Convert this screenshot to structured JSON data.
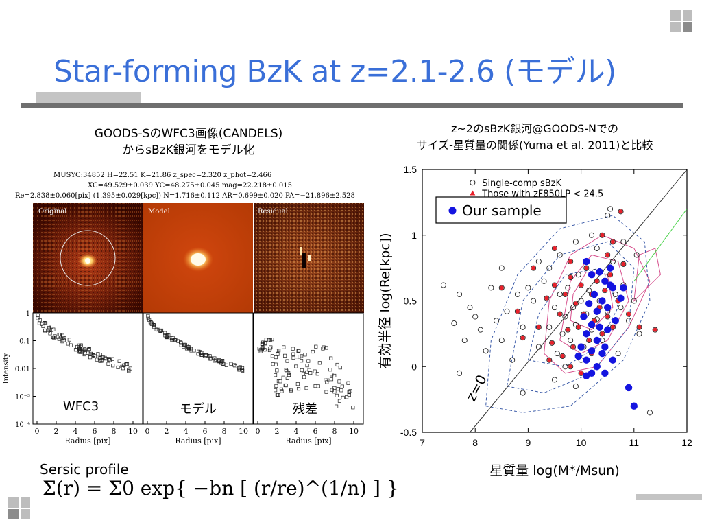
{
  "slide": {
    "title": "Star-forming BzK at z=2.1-2.6 (モデル)",
    "left_caption_line1": "GOODS-SのWFC3画像(CANDELS)",
    "left_caption_line2": "からsBzK銀河をモデル化",
    "right_caption_line1": "z~2のsBzK銀河@GOODS-Nでの",
    "right_caption_line2": "サイズ-星質量の関係(Yuma et al. 2011)と比較",
    "sersic_label": "Sersic profile",
    "formula_text": "Σ(r) = Σ0 exp{ −bn [ (r/re)^(1/n) ] }"
  },
  "fit_info": {
    "line1": "MUSYC:34852  H=22.51  K=21.86  z_spec=2.320  z_phot=2.466",
    "line2": "XC=49.529±0.039  YC=48.275±0.045  mag=22.218±0.015",
    "line3": "Re=2.838±0.060[pix]  (1.395±0.029[kpc])  N=1.716±0.112  AR=0.699±0.020  PA=−21.896±2.528"
  },
  "image_panels": {
    "labels": [
      "Original",
      "Model",
      "Residual"
    ]
  },
  "profile_panels": {
    "labels": [
      "WFC3",
      "モデル",
      "残差"
    ],
    "ylabel": "Intensity",
    "xlabel": "Radius [pix]",
    "yticks": [
      "1",
      "0.1",
      "0.01",
      "10⁻³",
      "10⁻⁴"
    ],
    "xticks": [
      "0",
      "2",
      "4",
      "6",
      "8",
      "10"
    ]
  },
  "chart_data": {
    "type": "scatter",
    "xlabel": "星質量 log(M*/Msun)",
    "ylabel": "有効半径 log(Re[kpc])",
    "xlim": [
      7,
      12
    ],
    "ylim": [
      -0.5,
      1.5
    ],
    "xticks": [
      "7",
      "8",
      "9",
      "10",
      "11",
      "12"
    ],
    "yticks": [
      "1.5",
      "1",
      "0.5",
      "0",
      "-0.5"
    ],
    "legend_inner": [
      "Single-comp sBzK",
      "Those with zF850LP < 24.5"
    ],
    "legend_box": "Our sample",
    "annotation": "z=0",
    "series": [
      {
        "name": "Single-comp sBzK",
        "points": [
          [
            7.4,
            0.62
          ],
          [
            7.7,
            0.55
          ],
          [
            7.6,
            0.33
          ],
          [
            7.9,
            0.45
          ],
          [
            8.0,
            0.38
          ],
          [
            7.8,
            0.2
          ],
          [
            8.1,
            0.28
          ],
          [
            7.7,
            -0.05
          ],
          [
            8.2,
            0.12
          ],
          [
            8.4,
            0.35
          ],
          [
            8.3,
            0.6
          ],
          [
            8.5,
            0.2
          ],
          [
            8.6,
            0.42
          ],
          [
            8.7,
            0.05
          ],
          [
            8.9,
            0.3
          ],
          [
            9.1,
            0.5
          ],
          [
            9.2,
            0.15
          ],
          [
            9.3,
            0.65
          ],
          [
            9.4,
            0.3
          ],
          [
            9.5,
            0.45
          ],
          [
            9.55,
            0.1
          ],
          [
            9.6,
            0.55
          ],
          [
            9.65,
            0.25
          ],
          [
            9.7,
            0.38
          ],
          [
            9.75,
            0.6
          ],
          [
            9.8,
            0.2
          ],
          [
            9.85,
            0.45
          ],
          [
            9.9,
            0.32
          ],
          [
            9.95,
            0.7
          ],
          [
            10.0,
            0.5
          ],
          [
            10.05,
            0.15
          ],
          [
            10.1,
            0.4
          ],
          [
            10.15,
            0.58
          ],
          [
            10.2,
            0.28
          ],
          [
            10.25,
            0.72
          ],
          [
            10.3,
            0.36
          ],
          [
            10.35,
            0.5
          ],
          [
            10.4,
            0.2
          ],
          [
            10.45,
            0.65
          ],
          [
            10.5,
            0.42
          ],
          [
            10.55,
            0.3
          ],
          [
            10.6,
            0.8
          ],
          [
            10.65,
            0.55
          ],
          [
            10.7,
            0.1
          ],
          [
            10.75,
            0.45
          ],
          [
            10.8,
            0.62
          ],
          [
            10.9,
            0.35
          ],
          [
            11.0,
            0.5
          ],
          [
            11.1,
            0.25
          ],
          [
            11.3,
            -0.35
          ],
          [
            9.6,
            0.85
          ],
          [
            9.9,
            0.95
          ],
          [
            10.2,
            1.0
          ],
          [
            10.5,
            1.15
          ],
          [
            10.55,
            1.2
          ],
          [
            10.3,
            0.9
          ],
          [
            9.4,
            0.75
          ],
          [
            9.0,
            0.6
          ],
          [
            8.8,
            0.55
          ],
          [
            9.2,
            0.8
          ],
          [
            10.8,
            0.95
          ],
          [
            11.05,
            0.85
          ],
          [
            10.0,
            0.05
          ],
          [
            9.7,
            0.0
          ],
          [
            9.5,
            -0.1
          ],
          [
            9.9,
            -0.15
          ],
          [
            10.3,
            0.0
          ],
          [
            10.6,
            0.05
          ],
          [
            8.5,
            0.75
          ],
          [
            8.9,
            -0.2
          ]
        ]
      },
      {
        "name": "Those with zF850LP < 24.5",
        "points": [
          [
            8.5,
            0.6
          ],
          [
            8.8,
            0.42
          ],
          [
            8.9,
            0.22
          ],
          [
            9.1,
            0.75
          ],
          [
            9.2,
            0.3
          ],
          [
            9.35,
            0.52
          ],
          [
            9.45,
            0.18
          ],
          [
            9.5,
            0.62
          ],
          [
            9.6,
            0.4
          ],
          [
            9.65,
            0.08
          ],
          [
            9.7,
            0.55
          ],
          [
            9.75,
            0.28
          ],
          [
            9.8,
            0.68
          ],
          [
            9.85,
            0.15
          ],
          [
            9.9,
            0.48
          ],
          [
            9.95,
            0.3
          ],
          [
            10.0,
            0.62
          ],
          [
            10.05,
            0.4
          ],
          [
            10.1,
            0.75
          ],
          [
            10.15,
            0.2
          ],
          [
            10.2,
            0.55
          ],
          [
            10.25,
            0.35
          ],
          [
            10.3,
            0.65
          ],
          [
            10.35,
            0.45
          ],
          [
            10.4,
            0.25
          ],
          [
            10.45,
            0.58
          ],
          [
            10.5,
            0.38
          ],
          [
            10.55,
            0.7
          ],
          [
            10.6,
            0.3
          ],
          [
            10.7,
            0.5
          ],
          [
            10.8,
            0.78
          ],
          [
            10.9,
            0.4
          ],
          [
            11.1,
            0.3
          ],
          [
            11.4,
            0.28
          ],
          [
            9.4,
            0.05
          ],
          [
            9.8,
            0.0
          ],
          [
            10.0,
            -0.05
          ],
          [
            10.2,
            0.1
          ],
          [
            9.5,
            0.9
          ],
          [
            10.4,
            1.0
          ],
          [
            10.75,
            1.18
          ],
          [
            10.5,
            0.85
          ],
          [
            9.8,
            0.8
          ],
          [
            10.6,
            0.95
          ]
        ]
      },
      {
        "name": "Our sample",
        "points": [
          [
            10.1,
            0.8
          ],
          [
            10.2,
            0.7
          ],
          [
            10.35,
            0.72
          ],
          [
            10.45,
            0.65
          ],
          [
            10.55,
            0.75
          ],
          [
            10.6,
            0.6
          ],
          [
            10.25,
            0.55
          ],
          [
            10.4,
            0.5
          ],
          [
            10.5,
            0.45
          ],
          [
            10.3,
            0.42
          ],
          [
            10.15,
            0.48
          ],
          [
            10.05,
            0.38
          ],
          [
            10.2,
            0.32
          ],
          [
            10.35,
            0.3
          ],
          [
            10.5,
            0.28
          ],
          [
            10.1,
            0.25
          ],
          [
            10.3,
            0.2
          ],
          [
            10.45,
            0.15
          ],
          [
            10.0,
            0.15
          ],
          [
            10.2,
            0.12
          ],
          [
            10.4,
            0.1
          ],
          [
            10.6,
            0.05
          ],
          [
            9.95,
            0.08
          ],
          [
            10.1,
            0.05
          ],
          [
            10.3,
            0.0
          ],
          [
            10.45,
            -0.05
          ],
          [
            10.2,
            -0.05
          ],
          [
            10.1,
            -0.07
          ],
          [
            10.75,
            0.52
          ],
          [
            10.65,
            0.35
          ],
          [
            10.9,
            -0.16
          ],
          [
            11.0,
            -0.3
          ],
          [
            10.55,
            0.62
          ],
          [
            10.8,
            0.6
          ]
        ]
      }
    ]
  }
}
